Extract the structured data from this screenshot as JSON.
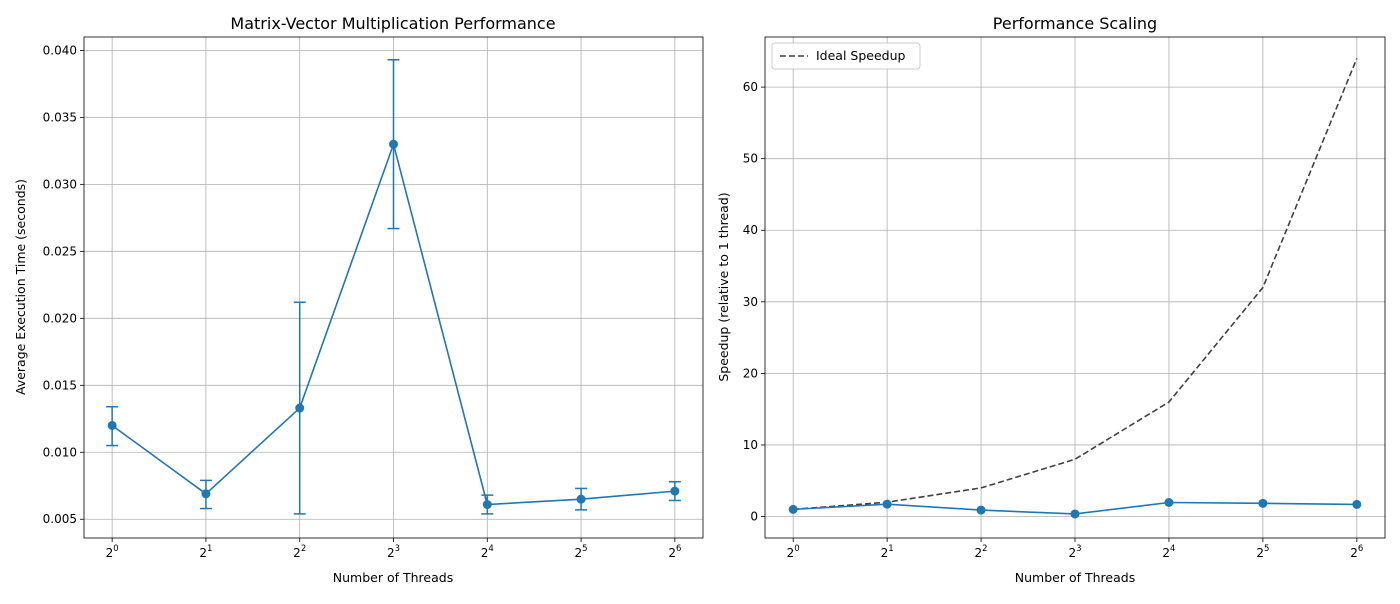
{
  "chart_data": [
    {
      "type": "line",
      "title": "Matrix-Vector Multiplication Performance",
      "xlabel": "Number of Threads",
      "ylabel": "Average Execution Time (seconds)",
      "x_scale": "log2",
      "x": [
        1,
        2,
        4,
        8,
        16,
        32,
        64
      ],
      "x_tick_labels": [
        {
          "base": "2",
          "exp": "0"
        },
        {
          "base": "2",
          "exp": "1"
        },
        {
          "base": "2",
          "exp": "2"
        },
        {
          "base": "2",
          "exp": "3"
        },
        {
          "base": "2",
          "exp": "4"
        },
        {
          "base": "2",
          "exp": "5"
        },
        {
          "base": "2",
          "exp": "6"
        }
      ],
      "ylim": [
        0.0036,
        0.041
      ],
      "y_ticks": [
        "0.005",
        "0.010",
        "0.015",
        "0.020",
        "0.025",
        "0.030",
        "0.035",
        "0.040"
      ],
      "grid": true,
      "series": [
        {
          "color": "#1f77b4",
          "marker": "circle",
          "values": [
            0.012,
            0.0069,
            0.0133,
            0.033,
            0.0061,
            0.0065,
            0.0071
          ],
          "error_low": [
            0.0105,
            0.0058,
            0.0054,
            0.0267,
            0.0054,
            0.0057,
            0.0064
          ],
          "error_high": [
            0.0134,
            0.0079,
            0.0212,
            0.0393,
            0.0068,
            0.0073,
            0.0078
          ]
        }
      ]
    },
    {
      "type": "line",
      "title": "Performance Scaling",
      "xlabel": "Number of Threads",
      "ylabel": "Speedup (relative to 1 thread)",
      "x_scale": "log2",
      "x": [
        1,
        2,
        4,
        8,
        16,
        32,
        64
      ],
      "x_tick_labels": [
        {
          "base": "2",
          "exp": "0"
        },
        {
          "base": "2",
          "exp": "1"
        },
        {
          "base": "2",
          "exp": "2"
        },
        {
          "base": "2",
          "exp": "3"
        },
        {
          "base": "2",
          "exp": "4"
        },
        {
          "base": "2",
          "exp": "5"
        },
        {
          "base": "2",
          "exp": "6"
        }
      ],
      "ylim": [
        -3,
        67
      ],
      "y_ticks": [
        "0",
        "10",
        "20",
        "30",
        "40",
        "50",
        "60"
      ],
      "grid": true,
      "legend_position": "top-left",
      "series": [
        {
          "name": "Ideal Speedup",
          "color": "#404040",
          "style": "dashed",
          "values": [
            1,
            2,
            4,
            8,
            16,
            32,
            64
          ]
        },
        {
          "color": "#1f77b4",
          "marker": "circle",
          "values": [
            1.0,
            1.73,
            0.9,
            0.36,
            1.96,
            1.84,
            1.69
          ]
        }
      ]
    }
  ]
}
